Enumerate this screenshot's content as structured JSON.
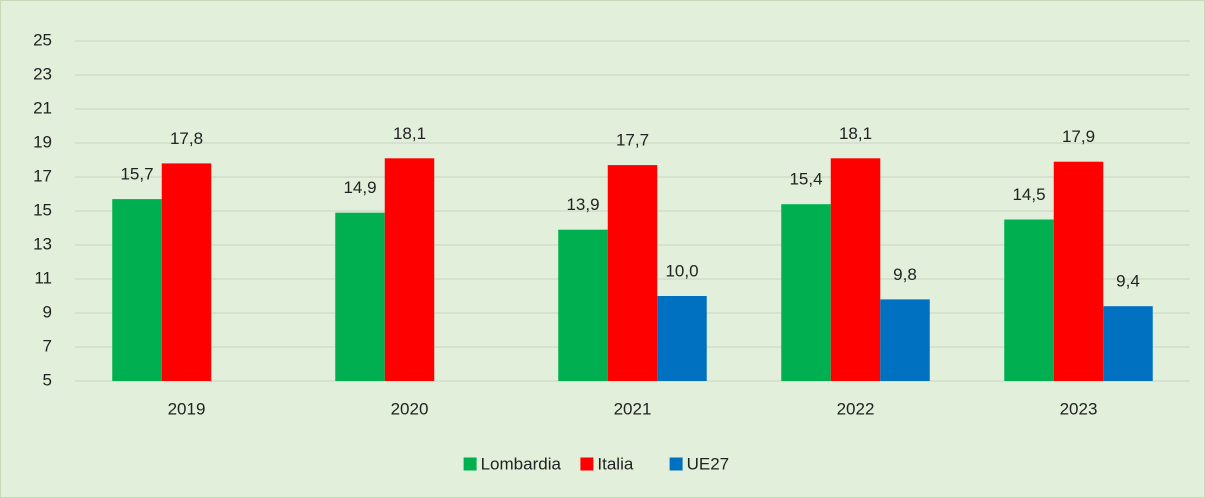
{
  "chart_data": {
    "type": "bar",
    "categories": [
      "2019",
      "2020",
      "2021",
      "2022",
      "2023"
    ],
    "series": [
      {
        "name": "Lombardia",
        "color": "#00b050",
        "values": [
          15.7,
          14.9,
          13.9,
          15.4,
          14.5
        ],
        "value_labels": [
          "15,7",
          "14,9",
          "13,9",
          "15,4",
          "14,5"
        ]
      },
      {
        "name": "Italia",
        "color": "#ff0000",
        "values": [
          17.8,
          18.1,
          17.7,
          18.1,
          17.9
        ],
        "value_labels": [
          "17,8",
          "18,1",
          "17,7",
          "18,1",
          "17,9"
        ]
      },
      {
        "name": "UE27",
        "color": "#0070c0",
        "values": [
          null,
          null,
          10.0,
          9.8,
          9.4
        ],
        "value_labels": [
          null,
          null,
          "10,0",
          "9,8",
          "9,4"
        ]
      }
    ],
    "ylim": [
      5,
      25
    ],
    "yticks": [
      5,
      7,
      9,
      11,
      13,
      15,
      17,
      19,
      21,
      23,
      25
    ],
    "grid": true,
    "legend": "bottom"
  }
}
